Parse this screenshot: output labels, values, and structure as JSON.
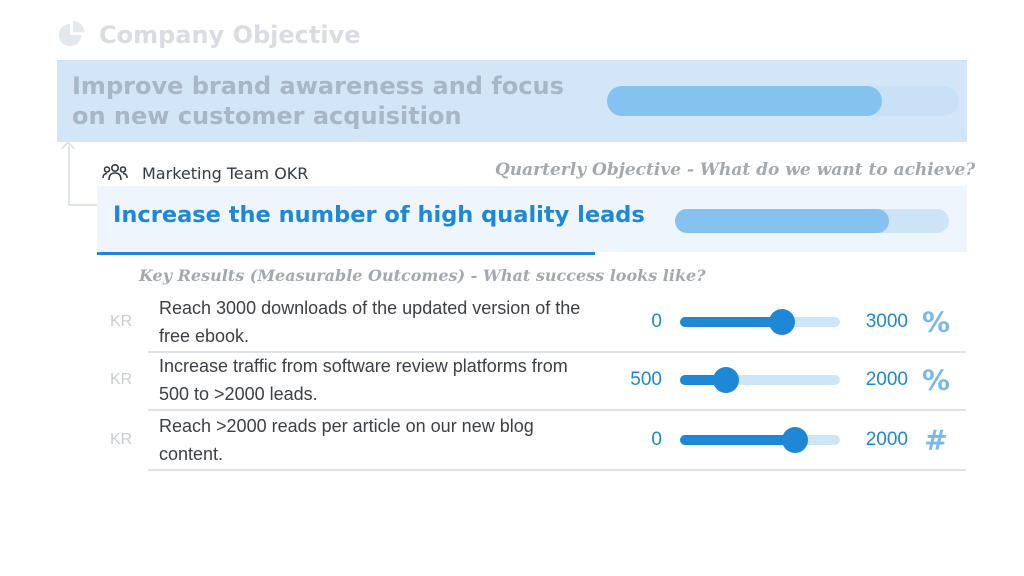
{
  "company": {
    "header": "Company Objective",
    "icon": "pie-chart-icon",
    "objective": "Improve brand awareness and focus on new customer acquisition",
    "progress": 0.78
  },
  "team": {
    "icon": "team-icon",
    "name": "Marketing Team OKR",
    "quarterly_label": "Quarterly Objective - What do we want to achieve?",
    "objective": "Increase the number of high quality leads",
    "progress": 0.78
  },
  "key_results": {
    "heading": "Key Results (Measurable Outcomes) - What success looks like?",
    "items": [
      {
        "tag": "KR",
        "text": "Reach 3000 downloads of the updated version of the free ebook.",
        "start": "0",
        "end": "3000",
        "unit": "%",
        "progress": 0.64
      },
      {
        "tag": "KR",
        "text": "Increase traffic from software review platforms from 500 to >2000 leads.",
        "start": "500",
        "end": "2000",
        "unit": "%",
        "progress": 0.29
      },
      {
        "tag": "KR",
        "text": "Reach >2000 reads per article on our new blog content.",
        "start": "0",
        "end": "2000",
        "unit": "#",
        "progress": 0.72
      }
    ]
  },
  "colors": {
    "accent": "#1e88d6",
    "company_box": "#d2e6f8",
    "team_box": "#eef5fc",
    "muted_text": "#a4a9ae"
  }
}
